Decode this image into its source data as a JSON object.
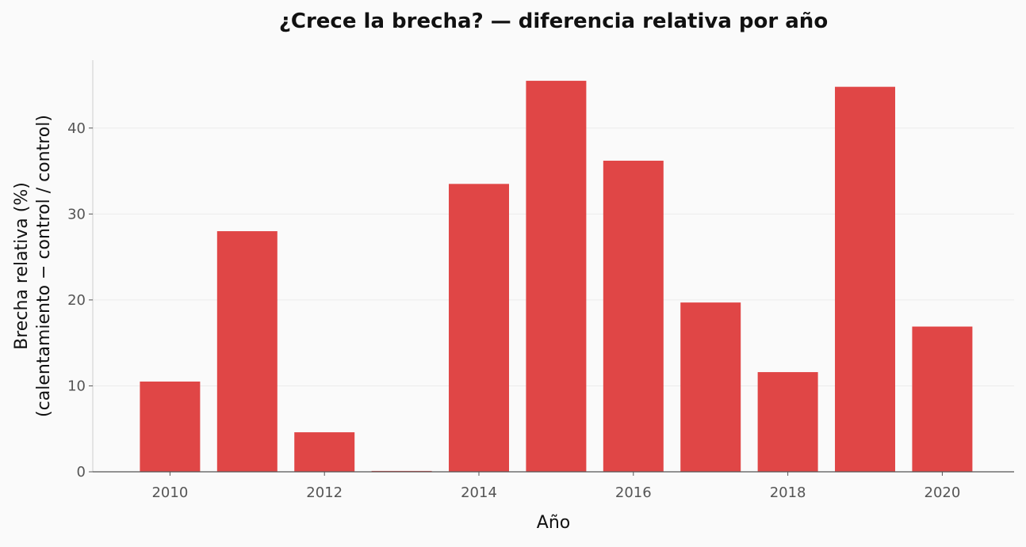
{
  "chart_data": {
    "type": "bar",
    "title": "¿Crece la brecha? — diferencia relativa por año",
    "xlabel": "Año",
    "ylabel_line1": "Brecha relativa (%)",
    "ylabel_line2": "(calentamiento − control / control)",
    "categories": [
      2010,
      2011,
      2012,
      2013,
      2014,
      2015,
      2016,
      2017,
      2018,
      2019,
      2020
    ],
    "values": [
      10.5,
      28.0,
      4.6,
      0.1,
      33.5,
      45.5,
      36.2,
      19.7,
      11.6,
      44.8,
      16.9
    ],
    "x_ticks": [
      2010,
      2012,
      2014,
      2016,
      2018,
      2020
    ],
    "y_ticks": [
      0,
      10,
      20,
      30,
      40
    ],
    "xlim": [
      2009,
      2020.93
    ],
    "ylim": [
      0,
      47.9
    ],
    "grid": "horizontal",
    "bar_color": "#e04646",
    "axis_color": "#555555",
    "grid_color": "#ececec",
    "background": "#fafafa"
  }
}
